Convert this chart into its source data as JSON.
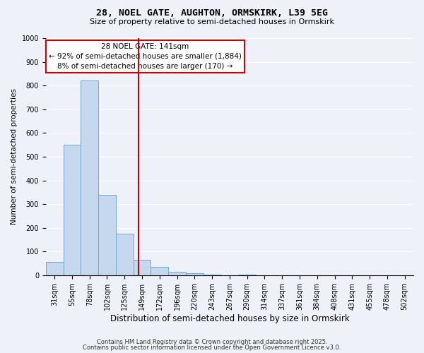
{
  "title1": "28, NOEL GATE, AUGHTON, ORMSKIRK, L39 5EG",
  "title2": "Size of property relative to semi-detached houses in Ormskirk",
  "xlabel": "Distribution of semi-detached houses by size in Ormskirk",
  "ylabel": "Number of semi-detached properties",
  "bin_labels": [
    "31sqm",
    "55sqm",
    "78sqm",
    "102sqm",
    "125sqm",
    "149sqm",
    "172sqm",
    "196sqm",
    "220sqm",
    "243sqm",
    "267sqm",
    "290sqm",
    "314sqm",
    "337sqm",
    "361sqm",
    "384sqm",
    "408sqm",
    "431sqm",
    "455sqm",
    "478sqm",
    "502sqm"
  ],
  "bar_values": [
    55,
    550,
    820,
    340,
    175,
    65,
    35,
    15,
    8,
    2,
    0,
    2,
    0,
    0,
    0,
    0,
    0,
    0,
    0,
    0,
    0
  ],
  "bar_color": "#c5d8ee",
  "bar_edge_color": "#6fa8d4",
  "vline_x": 4.78,
  "vline_color": "#cc0000",
  "annotation_title": "28 NOEL GATE: 141sqm",
  "annotation_line1": "← 92% of semi-detached houses are smaller (1,884)",
  "annotation_line2": "8% of semi-detached houses are larger (170) →",
  "annotation_box_color": "white",
  "annotation_box_edge": "#cc0000",
  "ylim": [
    0,
    1000
  ],
  "yticks": [
    0,
    100,
    200,
    300,
    400,
    500,
    600,
    700,
    800,
    900,
    1000
  ],
  "footnote1": "Contains HM Land Registry data © Crown copyright and database right 2025.",
  "footnote2": "Contains public sector information licensed under the Open Government Licence v3.0.",
  "background_color": "#eef2f8",
  "grid_color": "#ffffff",
  "title1_fontsize": 9.5,
  "title2_fontsize": 8.0,
  "ylabel_fontsize": 7.5,
  "xlabel_fontsize": 8.5,
  "tick_fontsize": 7,
  "annotation_fontsize": 7.5,
  "footnote_fontsize": 6.0
}
